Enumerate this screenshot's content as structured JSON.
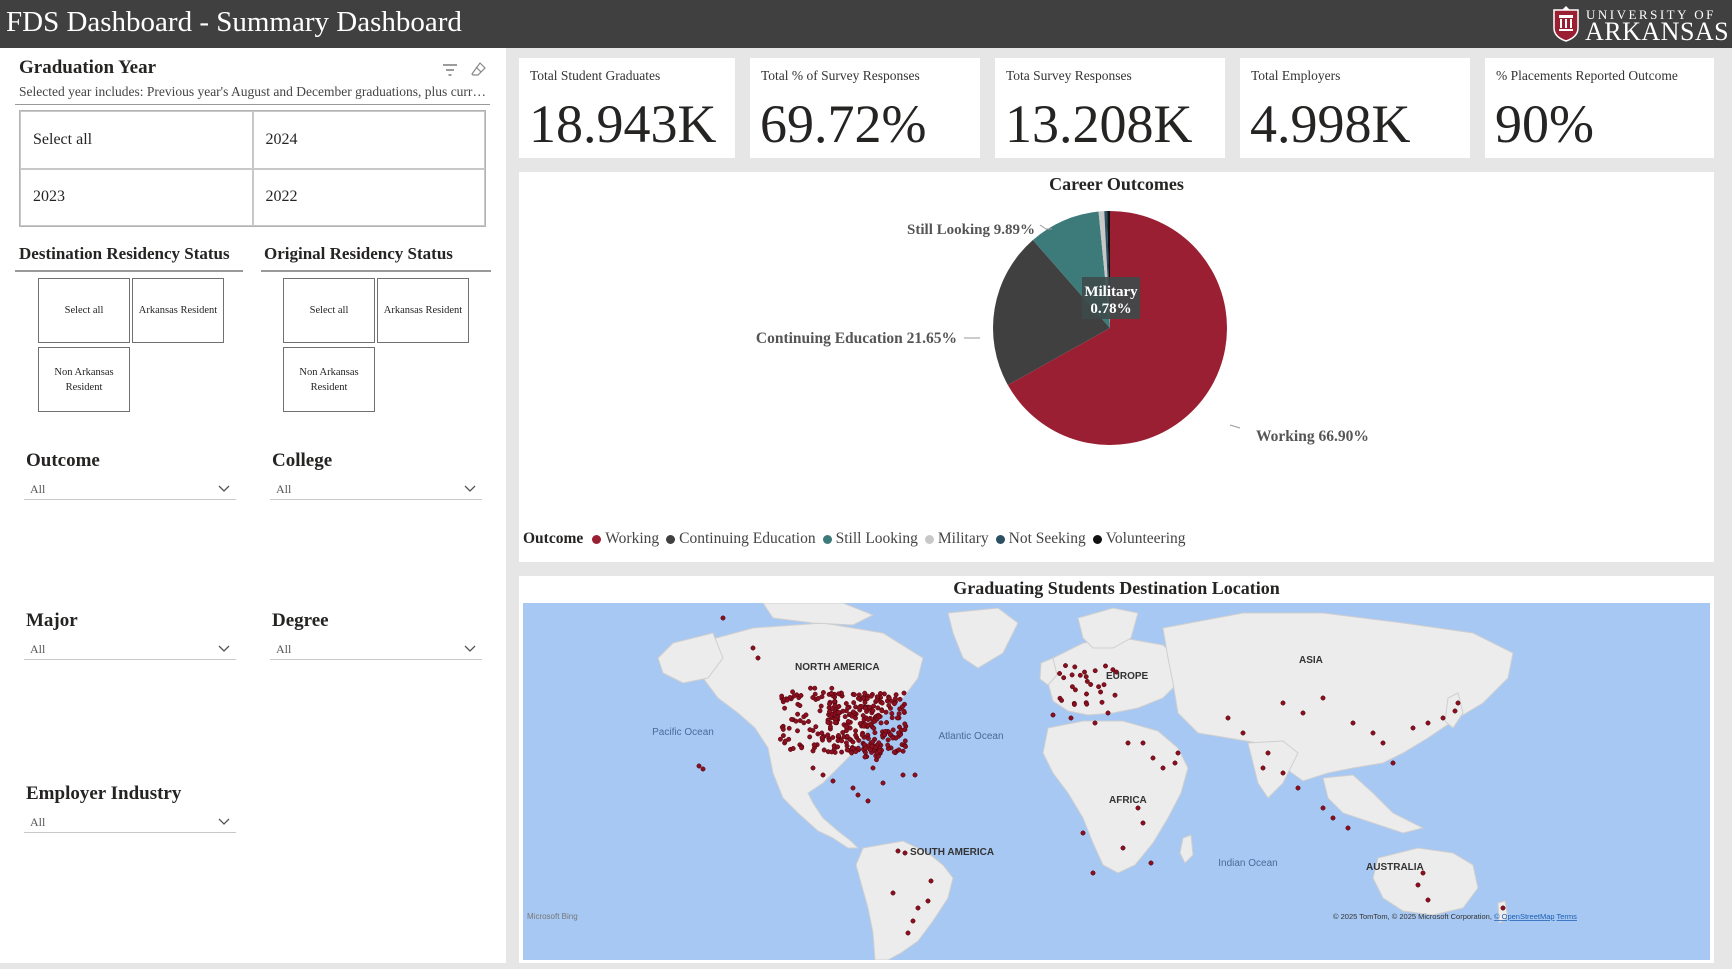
{
  "header": {
    "title": "FDS Dashboard - Summary Dashboard",
    "logo_top": "UNIVERSITY OF",
    "logo_main": "ARKANSAS"
  },
  "colors": {
    "header_bg": "#404040",
    "working": "#9b1f32",
    "continuing_education": "#404040",
    "still_looking": "#3d7a7a",
    "military": "#c8c8c8",
    "not_seeking": "#2d4f63",
    "volunteering": "#111111",
    "map_dot": "#8a1020"
  },
  "icons": [
    "filter-icon",
    "eraser-icon",
    "chevron-down-icon",
    "university-shield-icon"
  ],
  "graduation_year": {
    "title": "Graduation Year",
    "subtitle": "Selected year includes: Previous year's August and December graduations, plus current year's May graduations",
    "options": [
      "Select all",
      "2024",
      "2023",
      "2022"
    ]
  },
  "destination_residency": {
    "title": "Destination Residency Status",
    "options": [
      "Select all",
      "Arkansas Resident",
      "Non Arkansas Resident"
    ]
  },
  "original_residency": {
    "title": "Original Residency Status",
    "options": [
      "Select all",
      "Arkansas Resident",
      "Non Arkansas Resident"
    ]
  },
  "dropdowns": {
    "outcome": {
      "label": "Outcome",
      "value": "All"
    },
    "college": {
      "label": "College",
      "value": "All"
    },
    "major": {
      "label": "Major",
      "value": "All"
    },
    "degree": {
      "label": "Degree",
      "value": "All"
    },
    "employer_industry": {
      "label": "Employer Industry",
      "value": "All"
    }
  },
  "kpis": [
    {
      "label": "Total Student Graduates",
      "value": "18.943K"
    },
    {
      "label": "Total % of Survey Responses",
      "value": "69.72%"
    },
    {
      "label": "Tota Survey Responses",
      "value": "13.208K"
    },
    {
      "label": "Total Employers",
      "value": "4.998K"
    },
    {
      "label": "% Placements Reported Outcome",
      "value": "90%"
    }
  ],
  "career_outcomes": {
    "tooltip": {
      "name": "Military",
      "value": "0.78%"
    },
    "labels": {
      "still_looking": "Still Looking 9.89%",
      "continuing_education": "Continuing Education 21.65%",
      "working": "Working 66.90%"
    },
    "legend_title": "Outcome"
  },
  "chart_data": {
    "type": "pie",
    "title": "Career Outcomes",
    "categories": [
      "Working",
      "Continuing Education",
      "Still Looking",
      "Military",
      "Not Seeking",
      "Volunteering"
    ],
    "values": [
      66.9,
      21.65,
      9.89,
      0.78,
      0.39,
      0.39
    ],
    "legend_position": "bottom-left"
  },
  "map": {
    "title": "Graduating Students Destination Location",
    "labels": {
      "north_america": "NORTH AMERICA",
      "south_america": "SOUTH AMERICA",
      "europe": "EUROPE",
      "africa": "AFRICA",
      "asia": "ASIA",
      "australia": "AUSTRALIA",
      "pacific": "Pacific Ocean",
      "atlantic": "Atlantic Ocean",
      "indian": "Indian Ocean"
    },
    "attribution": "© 2025 TomTom, © 2025 Microsoft Corporation,",
    "attribution_link": "© OpenStreetMap",
    "terms": "Terms",
    "bing": "Microsoft Bing"
  }
}
